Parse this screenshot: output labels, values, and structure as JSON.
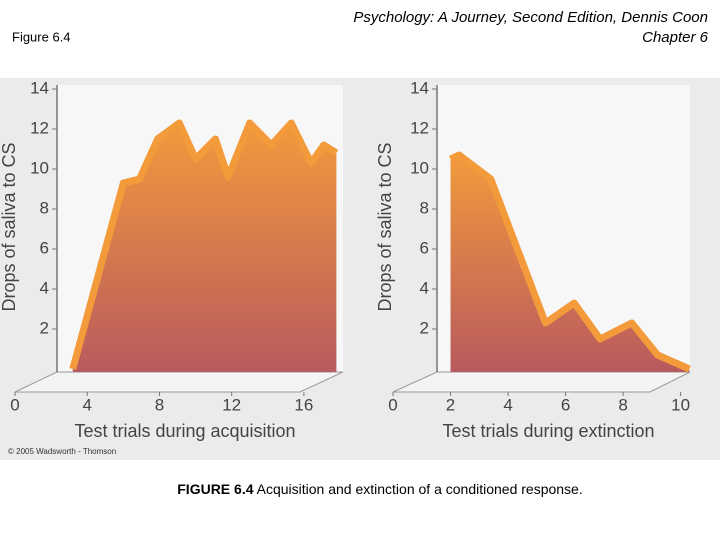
{
  "header": {
    "label": "Figure 6.4",
    "title": "Psychology: A Journey, Second Edition, Dennis Coon",
    "subtitle": "Chapter 6"
  },
  "copyright": "© 2005 Wadsworth - Thomson",
  "caption": {
    "label": "FIGURE 6.4",
    "text": "Acquisition and extinction of a conditioned response."
  },
  "chart_data": [
    {
      "type": "area",
      "xlabel": "Test trials during acquisition",
      "ylabel": "Drops of saliva to CS",
      "x": [
        3.2,
        6,
        6.9,
        7.9,
        9.1,
        10,
        11.1,
        11.8,
        13,
        14.2,
        15.3,
        16.4,
        17.1,
        17.8
      ],
      "values": [
        0,
        9.3,
        9.5,
        11.5,
        12.3,
        10.5,
        11.5,
        9.6,
        12.3,
        11.2,
        12.3,
        10.3,
        11.2,
        10.8
      ],
      "xlim": [
        0,
        18
      ],
      "ylim": [
        0,
        14.2
      ],
      "xticks": [
        0,
        4,
        8,
        12,
        16
      ],
      "yticks": [
        2,
        4,
        6,
        8,
        10,
        12,
        14
      ],
      "color": "#f39a3a"
    },
    {
      "type": "area",
      "xlabel": "Test trials during extinction",
      "ylabel": "Drops of saliva to CS",
      "x": [
        2,
        2.3,
        3.4,
        5.3,
        6.3,
        7.2,
        8.3,
        9.2,
        10.3
      ],
      "values": [
        10.5,
        10.7,
        9.5,
        2.3,
        3.3,
        1.5,
        2.3,
        0.7,
        0
      ],
      "xlim": [
        0,
        10.5
      ],
      "ylim": [
        0,
        14.2
      ],
      "xticks": [
        0,
        2,
        4,
        6,
        8,
        10
      ],
      "yticks": [
        2,
        4,
        6,
        8,
        10,
        12,
        14
      ],
      "color": "#f39a3a"
    }
  ]
}
